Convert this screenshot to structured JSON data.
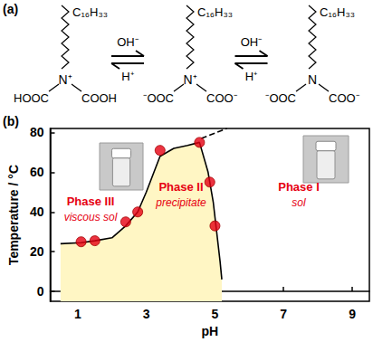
{
  "panel_a": {
    "label": "(a)",
    "structures": [
      {
        "chain": "C₁₆H₃₃",
        "nitrogen": "N⁺",
        "left": "HOOC",
        "right": "COOH"
      },
      {
        "chain": "C₁₆H₃₃",
        "nitrogen": "N⁺",
        "left": "⁻OOC",
        "right": "COO⁻"
      },
      {
        "chain": "C₁₆H₃₃",
        "nitrogen": "N",
        "left": "⁻OOC",
        "right": "COO⁻"
      }
    ],
    "arrows": [
      {
        "above": "OH⁻",
        "below": "H⁺"
      },
      {
        "above": "OH⁻",
        "below": "H⁺"
      }
    ]
  },
  "chart_data": {
    "type": "scatter",
    "panel_label": "(b)",
    "x_label": "pH",
    "y_label": "Temperature / °C",
    "xlim": [
      0.2,
      9.5
    ],
    "xticks": [
      1,
      3,
      5,
      7,
      9
    ],
    "ylim": [
      -5,
      82
    ],
    "yticks": [
      0,
      20,
      40,
      60,
      80
    ],
    "grid": false,
    "regions": [
      {
        "phase": "Phase III",
        "state": "viscous sol"
      },
      {
        "phase": "Phase II",
        "state": "precipitate"
      },
      {
        "phase": "Phase I",
        "state": "sol"
      }
    ],
    "series": [
      {
        "type": "line",
        "color": "#000000",
        "line_style": "solid",
        "values": [
          [
            0.5,
            24
          ],
          [
            1.1,
            24.5
          ],
          [
            1.5,
            25.5
          ],
          [
            2.0,
            27
          ],
          [
            2.4,
            33
          ],
          [
            2.75,
            40
          ],
          [
            3.0,
            50
          ],
          [
            3.4,
            68
          ],
          [
            3.8,
            72
          ],
          [
            4.2,
            73.5
          ],
          [
            4.55,
            75
          ],
          [
            4.8,
            60
          ],
          [
            4.95,
            45
          ],
          [
            5.05,
            30
          ],
          [
            5.15,
            15
          ],
          [
            5.2,
            6
          ]
        ]
      },
      {
        "type": "line",
        "color": "#000000",
        "line_style": "dashed",
        "values": [
          [
            4.6,
            77
          ],
          [
            5.35,
            82
          ]
        ]
      },
      {
        "type": "scatter",
        "color": "#e60012",
        "marker": "circle",
        "values": [
          [
            1.1,
            25
          ],
          [
            1.5,
            25.5
          ],
          [
            2.4,
            35
          ],
          [
            2.75,
            40
          ],
          [
            3.4,
            71
          ],
          [
            4.55,
            75
          ],
          [
            4.85,
            55
          ],
          [
            5.0,
            33
          ]
        ]
      }
    ]
  }
}
